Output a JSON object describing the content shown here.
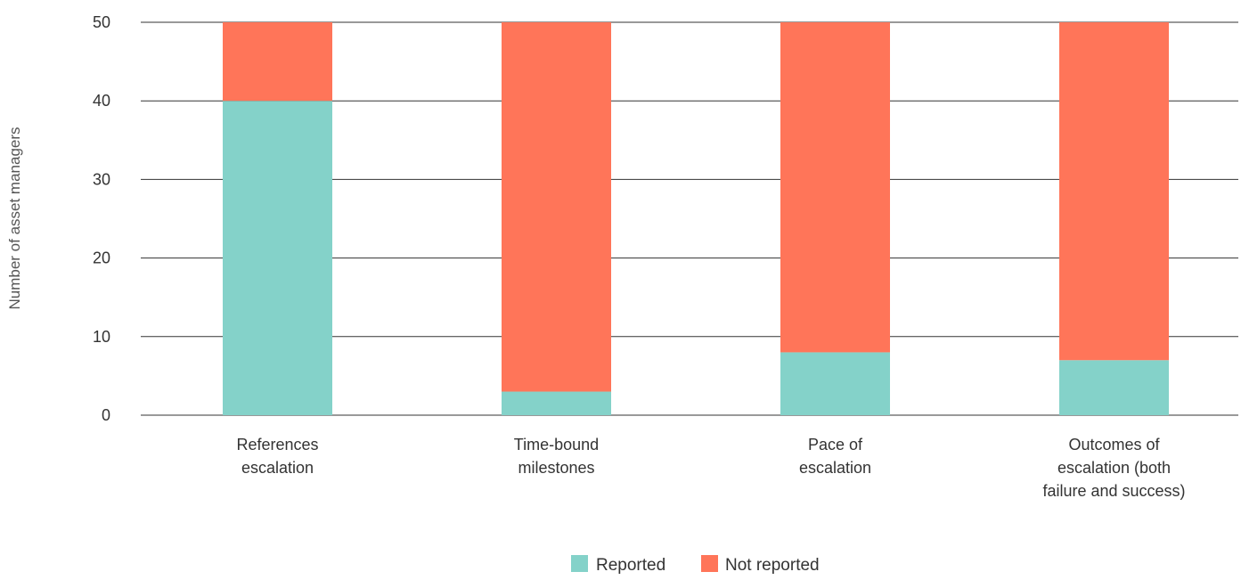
{
  "chart_data": {
    "type": "bar",
    "stacked": true,
    "title": "",
    "xlabel": "",
    "ylabel": "Number of asset managers",
    "ylim": [
      0,
      50
    ],
    "yticks": [
      0,
      10,
      20,
      30,
      40,
      50
    ],
    "grid": true,
    "legend_position": "bottom-center",
    "categories": [
      [
        "References",
        "escalation"
      ],
      [
        "Time-bound",
        "milestones"
      ],
      [
        "Pace of",
        "escalation"
      ],
      [
        "Outcomes of",
        "escalation (both",
        "failure and success)"
      ]
    ],
    "series": [
      {
        "name": "Reported",
        "color": "#84D2C9",
        "values": [
          40,
          3,
          8,
          7
        ]
      },
      {
        "name": "Not reported",
        "color": "#FF7559",
        "values": [
          10,
          47,
          42,
          43
        ]
      }
    ]
  }
}
